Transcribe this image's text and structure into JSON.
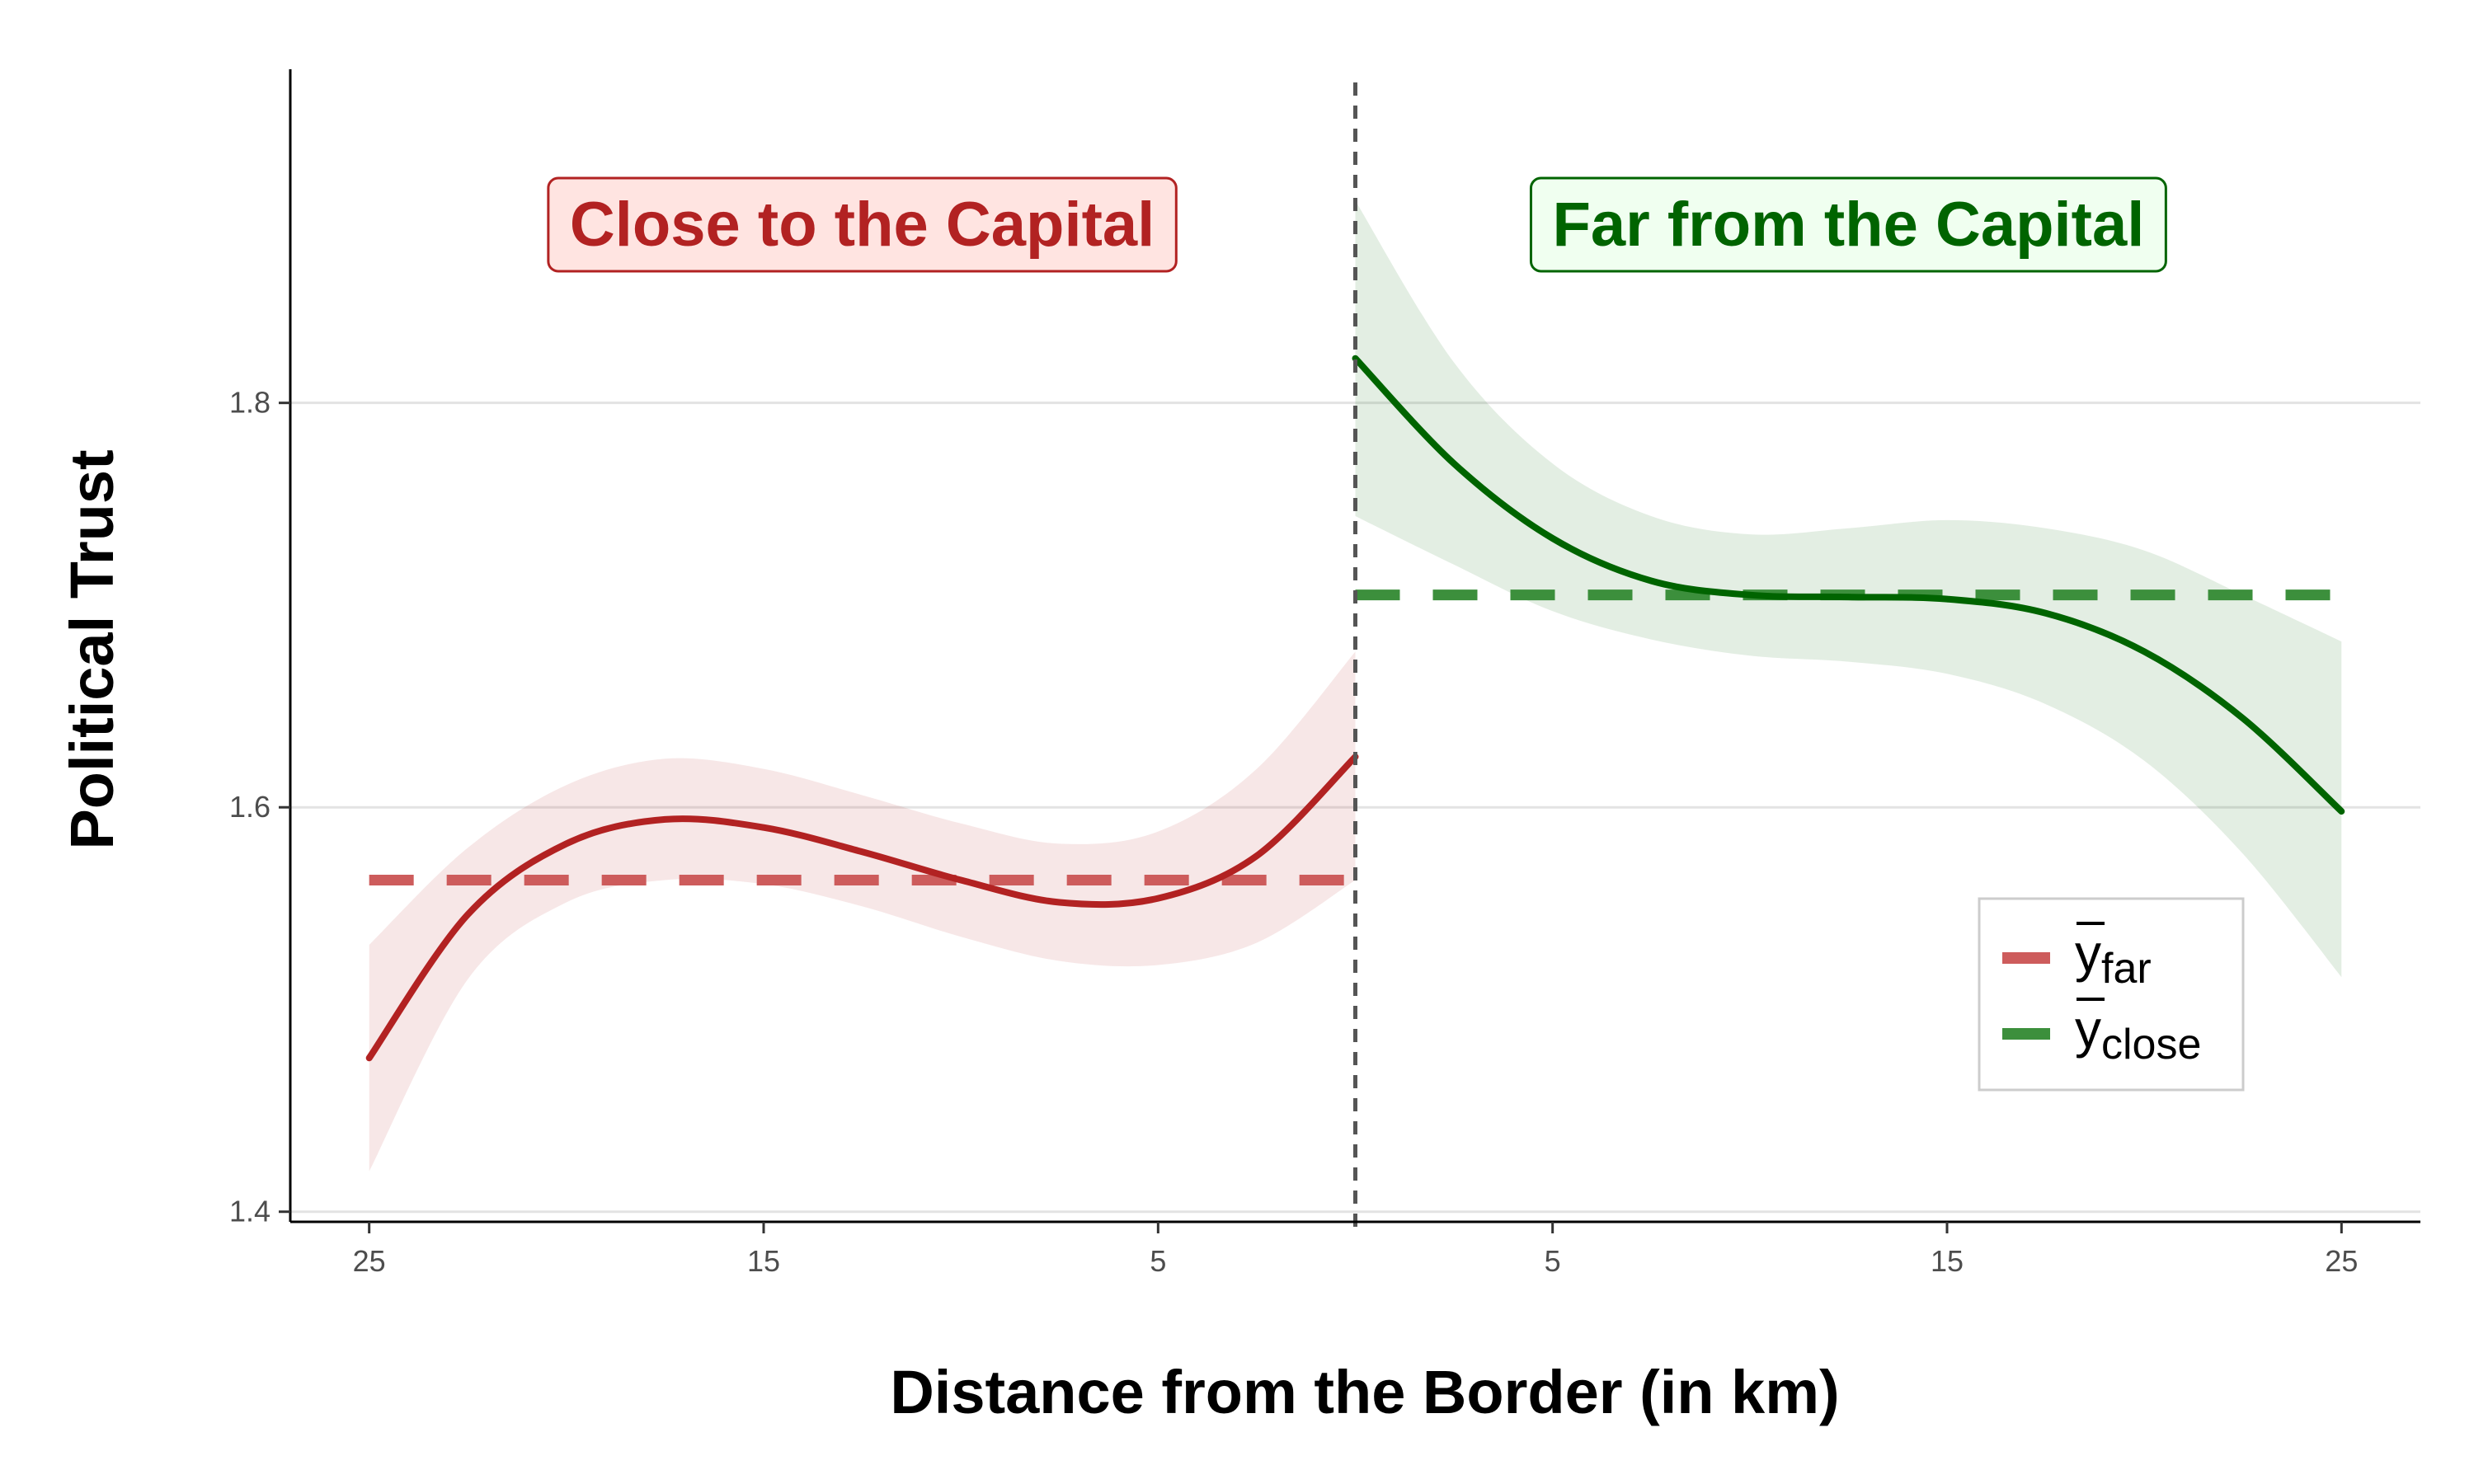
{
  "chart_data": {
    "type": "line",
    "xlabel": "Distance from the Border (in km)",
    "ylabel": "Political Trust",
    "xlim": [
      -27,
      27
    ],
    "ylim": [
      1.395,
      1.965
    ],
    "x_ticks": [
      -25,
      -15,
      -5,
      5,
      15,
      25
    ],
    "x_tick_labels": [
      "25",
      "15",
      "5",
      "5",
      "15",
      "25"
    ],
    "y_ticks": [
      1.4,
      1.6,
      1.8
    ],
    "y_tick_labels": [
      "1.4",
      "1.6",
      "1.8"
    ],
    "grid": "horizontal major",
    "cutoff": 0,
    "regions": [
      {
        "text": "Close to the Capital",
        "color": "#b22222",
        "fill": "#ffe4e1",
        "side": "left"
      },
      {
        "text": "Far from the Capital",
        "color": "#006400",
        "fill": "#f0fff0",
        "side": "right"
      }
    ],
    "series": [
      {
        "side": "close",
        "color": "#b22222",
        "x": [
          -25,
          -22.5,
          -20,
          -17.5,
          -15,
          -12.5,
          -10,
          -7.5,
          -5,
          -2.5,
          0
        ],
        "y": [
          1.476,
          1.547,
          1.582,
          1.594,
          1.59,
          1.578,
          1.564,
          1.553,
          1.555,
          1.576,
          1.625
        ],
        "ci_lower": [
          1.42,
          1.515,
          1.553,
          1.564,
          1.562,
          1.551,
          1.536,
          1.524,
          1.522,
          1.533,
          1.564
        ],
        "ci_upper": [
          1.532,
          1.58,
          1.611,
          1.624,
          1.619,
          1.606,
          1.592,
          1.582,
          1.588,
          1.619,
          1.677
        ]
      },
      {
        "side": "far",
        "color": "#006400",
        "x": [
          0,
          2.5,
          5,
          7.5,
          10,
          12.5,
          15,
          17.5,
          20,
          22.5,
          25
        ],
        "y": [
          1.822,
          1.77,
          1.733,
          1.712,
          1.705,
          1.704,
          1.703,
          1.696,
          1.677,
          1.644,
          1.598
        ],
        "ci_lower": [
          1.744,
          1.72,
          1.697,
          1.683,
          1.675,
          1.672,
          1.666,
          1.651,
          1.623,
          1.577,
          1.516
        ],
        "ci_upper": [
          1.9,
          1.82,
          1.77,
          1.744,
          1.735,
          1.738,
          1.742,
          1.738,
          1.727,
          1.705,
          1.682
        ]
      }
    ],
    "reference_lines": [
      {
        "label_base": "y",
        "label_sub": "far",
        "value": 1.564,
        "x_range": [
          -25,
          0
        ],
        "color": "#cd5c5c"
      },
      {
        "label_base": "y",
        "label_sub": "close",
        "value": 1.705,
        "x_range": [
          0,
          25
        ],
        "color": "#3c8f3c"
      }
    ],
    "legend_position": "bottom-right"
  }
}
